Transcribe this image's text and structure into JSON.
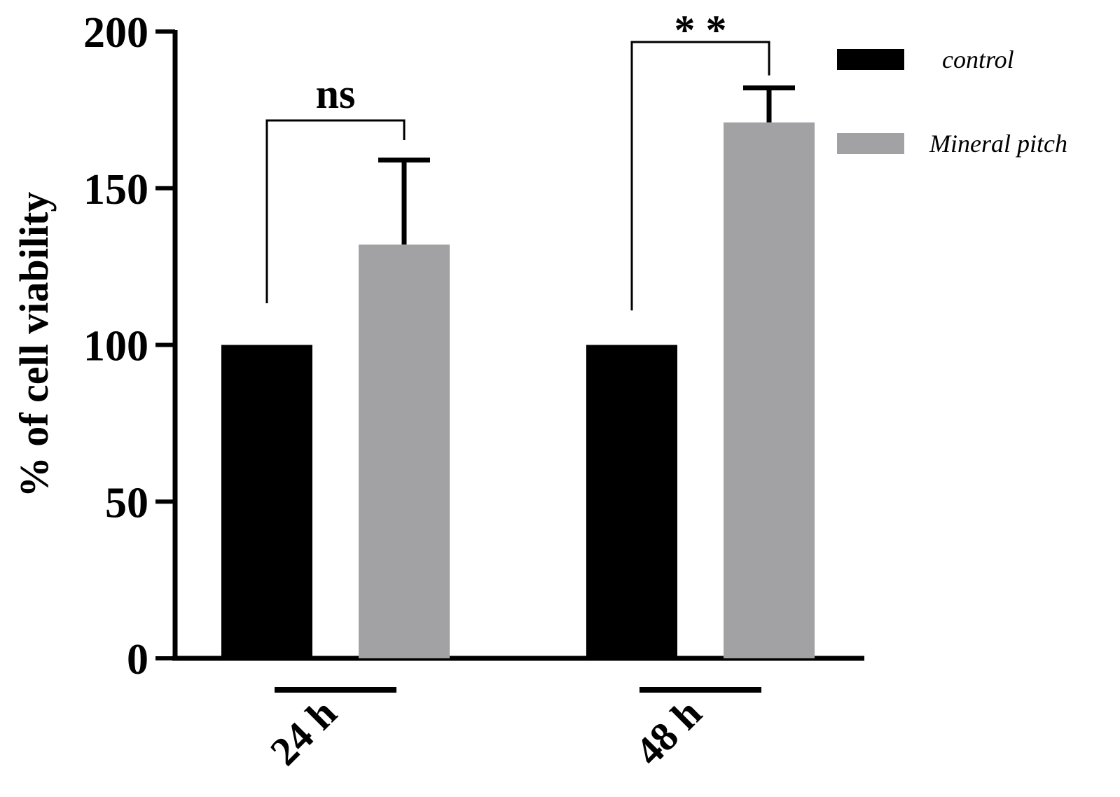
{
  "chart_data": {
    "type": "bar",
    "ylabel": "% of cell viability",
    "xlabel": "",
    "ylim": [
      0,
      200
    ],
    "yticks": [
      0,
      50,
      100,
      150,
      200
    ],
    "categories": [
      "24 h",
      "48 h"
    ],
    "series": [
      {
        "name": "control",
        "color": "#000000",
        "values": [
          100,
          100
        ],
        "errors": [
          0,
          0
        ]
      },
      {
        "name": "Mineral pitch",
        "color": "#a2a2a4",
        "values": [
          132,
          171
        ],
        "errors": [
          27,
          11
        ]
      }
    ],
    "annotations": [
      {
        "category": "24 h",
        "text": "ns"
      },
      {
        "category": "48 h",
        "text": "* *"
      }
    ],
    "legend_position": "top-right",
    "grid": false
  }
}
